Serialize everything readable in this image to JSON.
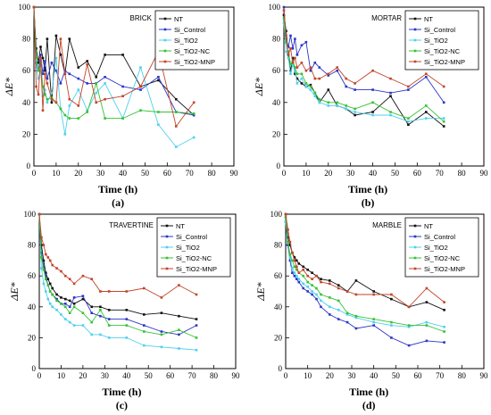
{
  "figure": {
    "background": "#ffffff"
  },
  "series_colors": {
    "NT": "#111111",
    "Si_Control": "#2b35c8",
    "Si_TiO2": "#4fd0ee",
    "Si_TiO2-NC": "#35c235",
    "Si_TiO2-MNP": "#c2452a"
  },
  "chart_data": [
    {
      "type": "line",
      "title": "BRICK",
      "panel_label": "(a)",
      "xlabel": "Time (h)",
      "ylabel": "ΔE*",
      "xlim": [
        0,
        90
      ],
      "ylim": [
        0,
        100
      ],
      "xticks": [
        "0",
        "10",
        "20",
        "30",
        "40",
        "50",
        "60",
        "70",
        "80",
        "90"
      ],
      "yticks": [
        "0",
        "20",
        "40",
        "60",
        "80",
        "100"
      ],
      "legend_position": "top-right",
      "series": [
        {
          "name": "NT",
          "x": [
            0,
            1,
            2,
            3,
            4,
            5,
            6,
            8,
            10,
            12,
            14,
            16,
            20,
            24,
            28,
            32,
            40,
            48,
            56,
            64,
            72
          ],
          "y": [
            100,
            74,
            65,
            75,
            68,
            60,
            80,
            40,
            82,
            70,
            58,
            80,
            62,
            66,
            56,
            70,
            70,
            50,
            54,
            42,
            32
          ]
        },
        {
          "name": "Si_Control",
          "x": [
            0,
            1,
            2,
            3,
            4,
            5,
            6,
            8,
            10,
            12,
            14,
            16,
            20,
            24,
            28,
            32,
            40,
            48,
            56,
            64,
            72
          ],
          "y": [
            100,
            65,
            60,
            70,
            58,
            66,
            55,
            65,
            60,
            52,
            60,
            58,
            55,
            52,
            52,
            56,
            50,
            48,
            56,
            34,
            32
          ]
        },
        {
          "name": "Si_TiO2",
          "x": [
            0,
            1,
            2,
            3,
            4,
            5,
            6,
            8,
            10,
            12,
            14,
            16,
            20,
            24,
            28,
            32,
            40,
            48,
            56,
            64,
            72
          ],
          "y": [
            100,
            62,
            55,
            60,
            44,
            48,
            40,
            46,
            68,
            36,
            20,
            38,
            48,
            35,
            46,
            52,
            30,
            62,
            26,
            12,
            18
          ]
        },
        {
          "name": "Si_TiO2-NC",
          "x": [
            0,
            1,
            2,
            3,
            4,
            5,
            6,
            8,
            10,
            12,
            14,
            16,
            20,
            24,
            28,
            32,
            40,
            48,
            56,
            64,
            72
          ],
          "y": [
            100,
            68,
            60,
            65,
            50,
            45,
            42,
            43,
            40,
            36,
            32,
            30,
            30,
            34,
            52,
            30,
            30,
            35,
            34,
            34,
            33
          ]
        },
        {
          "name": "Si_TiO2-MNP",
          "x": [
            0,
            1,
            2,
            3,
            4,
            5,
            6,
            8,
            10,
            12,
            14,
            16,
            20,
            24,
            28,
            32,
            40,
            48,
            56,
            64,
            72
          ],
          "y": [
            100,
            50,
            45,
            68,
            35,
            58,
            52,
            42,
            40,
            80,
            58,
            42,
            38,
            64,
            40,
            42,
            44,
            50,
            72,
            25,
            40
          ]
        }
      ]
    },
    {
      "type": "line",
      "title": "MORTAR",
      "panel_label": "(b)",
      "xlabel": "Time (h)",
      "ylabel": "ΔE*",
      "xlim": [
        0,
        90
      ],
      "ylim": [
        0,
        100
      ],
      "xticks": [
        "0",
        "10",
        "20",
        "30",
        "40",
        "50",
        "60",
        "70",
        "80",
        "90"
      ],
      "yticks": [
        "0",
        "20",
        "40",
        "60",
        "80",
        "100"
      ],
      "legend_position": "top-right",
      "series": [
        {
          "name": "NT",
          "x": [
            0,
            1,
            2,
            3,
            4,
            5,
            6,
            8,
            10,
            12,
            14,
            16,
            20,
            24,
            28,
            32,
            40,
            48,
            56,
            64,
            72
          ],
          "y": [
            95,
            85,
            70,
            60,
            68,
            58,
            55,
            52,
            50,
            51,
            46,
            40,
            48,
            38,
            36,
            32,
            34,
            44,
            26,
            34,
            25
          ]
        },
        {
          "name": "Si_Control",
          "x": [
            0,
            1,
            2,
            3,
            4,
            5,
            6,
            8,
            10,
            12,
            14,
            16,
            20,
            24,
            28,
            32,
            40,
            48,
            56,
            64,
            72
          ],
          "y": [
            100,
            80,
            75,
            82,
            74,
            80,
            70,
            76,
            78,
            60,
            65,
            62,
            57,
            60,
            50,
            48,
            48,
            46,
            48,
            56,
            40
          ]
        },
        {
          "name": "Si_TiO2",
          "x": [
            0,
            1,
            2,
            3,
            4,
            5,
            6,
            8,
            10,
            12,
            14,
            16,
            20,
            24,
            28,
            32,
            40,
            48,
            56,
            64,
            72
          ],
          "y": [
            90,
            72,
            68,
            58,
            64,
            60,
            52,
            55,
            50,
            48,
            44,
            40,
            38,
            38,
            36,
            34,
            32,
            32,
            28,
            30,
            30
          ]
        },
        {
          "name": "Si_TiO2-NC",
          "x": [
            0,
            1,
            2,
            3,
            4,
            5,
            6,
            8,
            10,
            12,
            14,
            16,
            20,
            24,
            28,
            32,
            40,
            48,
            56,
            64,
            72
          ],
          "y": [
            93,
            78,
            72,
            64,
            66,
            62,
            58,
            58,
            52,
            50,
            46,
            42,
            40,
            40,
            38,
            36,
            40,
            34,
            30,
            38,
            28
          ]
        },
        {
          "name": "Si_TiO2-MNP",
          "x": [
            0,
            1,
            2,
            3,
            4,
            5,
            6,
            8,
            10,
            12,
            14,
            16,
            20,
            24,
            28,
            32,
            40,
            48,
            56,
            64,
            72
          ],
          "y": [
            98,
            82,
            70,
            74,
            65,
            68,
            62,
            65,
            60,
            62,
            55,
            55,
            58,
            62,
            55,
            52,
            60,
            55,
            50,
            58,
            50
          ]
        }
      ]
    },
    {
      "type": "line",
      "title": "TRAVERTINE",
      "panel_label": "(c)",
      "xlabel": "Time (h)",
      "ylabel": "ΔE*",
      "xlim": [
        0,
        90
      ],
      "ylim": [
        0,
        100
      ],
      "xticks": [
        "0",
        "10",
        "20",
        "30",
        "40",
        "50",
        "60",
        "70",
        "80",
        "90"
      ],
      "yticks": [
        "0",
        "20",
        "40",
        "60",
        "80",
        "100"
      ],
      "legend_position": "top-right",
      "series": [
        {
          "name": "NT",
          "x": [
            0,
            1,
            2,
            3,
            4,
            5,
            6,
            8,
            10,
            12,
            14,
            16,
            20,
            24,
            28,
            32,
            40,
            48,
            56,
            64,
            72
          ],
          "y": [
            100,
            80,
            70,
            62,
            58,
            55,
            52,
            48,
            46,
            45,
            44,
            42,
            45,
            40,
            40,
            38,
            38,
            35,
            36,
            34,
            32
          ]
        },
        {
          "name": "Si_Control",
          "x": [
            0,
            1,
            2,
            3,
            4,
            5,
            6,
            8,
            10,
            12,
            14,
            16,
            20,
            24,
            28,
            32,
            40,
            48,
            56,
            64,
            72
          ],
          "y": [
            100,
            75,
            66,
            60,
            54,
            50,
            48,
            45,
            42,
            42,
            40,
            46,
            47,
            36,
            34,
            32,
            32,
            28,
            24,
            22,
            28
          ]
        },
        {
          "name": "Si_TiO2",
          "x": [
            0,
            1,
            2,
            3,
            4,
            5,
            6,
            8,
            10,
            12,
            14,
            16,
            20,
            24,
            28,
            32,
            40,
            48,
            56,
            64,
            72
          ],
          "y": [
            100,
            65,
            55,
            50,
            45,
            42,
            40,
            38,
            35,
            32,
            30,
            28,
            28,
            22,
            22,
            20,
            20,
            15,
            14,
            13,
            12
          ]
        },
        {
          "name": "Si_TiO2-NC",
          "x": [
            0,
            1,
            2,
            3,
            4,
            5,
            6,
            8,
            10,
            12,
            14,
            16,
            20,
            24,
            28,
            32,
            40,
            48,
            56,
            64,
            72
          ],
          "y": [
            100,
            72,
            64,
            58,
            54,
            50,
            48,
            44,
            42,
            40,
            36,
            40,
            36,
            30,
            38,
            28,
            28,
            24,
            22,
            25,
            20
          ]
        },
        {
          "name": "Si_TiO2-MNP",
          "x": [
            0,
            1,
            2,
            3,
            4,
            5,
            6,
            8,
            10,
            12,
            14,
            16,
            20,
            24,
            28,
            32,
            40,
            48,
            56,
            64,
            72
          ],
          "y": [
            100,
            85,
            80,
            74,
            72,
            70,
            67,
            65,
            63,
            60,
            58,
            55,
            60,
            58,
            50,
            50,
            50,
            52,
            46,
            54,
            48
          ]
        }
      ]
    },
    {
      "type": "line",
      "title": "MARBLE",
      "panel_label": "(d)",
      "xlabel": "Time (h)",
      "ylabel": "ΔE*",
      "xlim": [
        0,
        90
      ],
      "ylim": [
        0,
        100
      ],
      "xticks": [
        "0",
        "10",
        "20",
        "30",
        "40",
        "50",
        "60",
        "70",
        "80",
        "90"
      ],
      "yticks": [
        "0",
        "20",
        "40",
        "60",
        "80",
        "100"
      ],
      "legend_position": "top-right",
      "series": [
        {
          "name": "NT",
          "x": [
            0,
            1,
            2,
            3,
            4,
            5,
            6,
            8,
            10,
            12,
            14,
            16,
            20,
            24,
            28,
            32,
            40,
            48,
            56,
            64,
            72
          ],
          "y": [
            100,
            85,
            80,
            75,
            72,
            70,
            68,
            66,
            64,
            62,
            60,
            58,
            57,
            54,
            50,
            57,
            50,
            45,
            40,
            43,
            38
          ]
        },
        {
          "name": "Si_Control",
          "x": [
            0,
            1,
            2,
            3,
            4,
            5,
            6,
            8,
            10,
            12,
            14,
            16,
            20,
            24,
            28,
            32,
            40,
            48,
            56,
            64,
            72
          ],
          "y": [
            95,
            80,
            70,
            62,
            60,
            58,
            56,
            52,
            50,
            48,
            45,
            40,
            35,
            32,
            30,
            26,
            28,
            20,
            15,
            18,
            17
          ]
        },
        {
          "name": "Si_TiO2",
          "x": [
            0,
            1,
            2,
            3,
            4,
            5,
            6,
            8,
            10,
            12,
            14,
            16,
            20,
            24,
            28,
            32,
            40,
            48,
            56,
            64,
            72
          ],
          "y": [
            95,
            82,
            72,
            65,
            62,
            60,
            58,
            55,
            53,
            50,
            48,
            44,
            40,
            38,
            35,
            33,
            30,
            28,
            27,
            30,
            27
          ]
        },
        {
          "name": "Si_TiO2-NC",
          "x": [
            0,
            1,
            2,
            3,
            4,
            5,
            6,
            8,
            10,
            12,
            14,
            16,
            20,
            24,
            28,
            32,
            40,
            48,
            56,
            64,
            72
          ],
          "y": [
            98,
            82,
            74,
            70,
            66,
            64,
            62,
            60,
            56,
            54,
            52,
            48,
            46,
            44,
            36,
            34,
            32,
            30,
            28,
            28,
            24
          ]
        },
        {
          "name": "Si_TiO2-MNP",
          "x": [
            0,
            1,
            2,
            3,
            4,
            5,
            6,
            8,
            10,
            12,
            14,
            16,
            20,
            24,
            28,
            32,
            40,
            48,
            56,
            64,
            72
          ],
          "y": [
            100,
            90,
            82,
            75,
            70,
            66,
            62,
            64,
            60,
            58,
            60,
            56,
            55,
            52,
            50,
            48,
            48,
            48,
            40,
            52,
            43
          ]
        }
      ]
    }
  ]
}
